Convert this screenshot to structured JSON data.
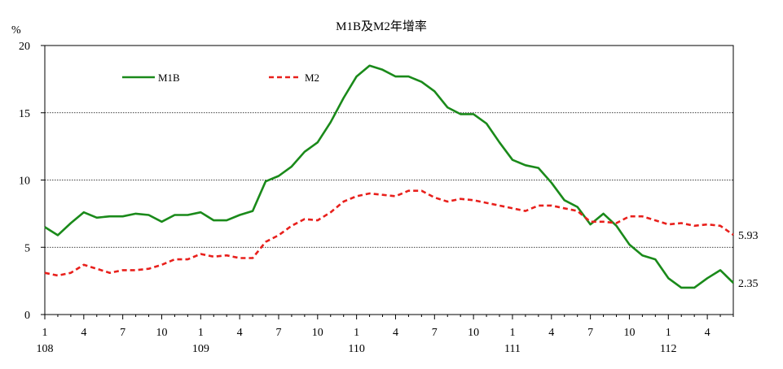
{
  "chart_data": {
    "type": "line",
    "title": "M1B及M2年增率",
    "ylabel": "%",
    "ylim": [
      0,
      20
    ],
    "yticks": [
      "0",
      "5",
      "10",
      "15",
      "20"
    ],
    "grid": true,
    "legend_position": "top-left",
    "colors": {
      "M1B": "#1a8a1a",
      "M2": "#e8201c"
    },
    "x_month_labels": [
      "1",
      "4",
      "7",
      "10",
      "1",
      "4",
      "7",
      "10",
      "1",
      "4",
      "7",
      "10",
      "1",
      "4",
      "7",
      "10",
      "1",
      "4",
      "7",
      "10",
      "1",
      "4"
    ],
    "x_year_labels": [
      "108",
      "109",
      "110",
      "111",
      "112"
    ],
    "series": [
      {
        "name": "M1B",
        "end_label": "2.35",
        "values": [
          6.5,
          5.9,
          6.8,
          7.6,
          7.2,
          7.3,
          7.3,
          7.5,
          7.4,
          6.9,
          7.4,
          7.4,
          7.6,
          7.0,
          7.0,
          7.4,
          7.7,
          9.9,
          10.3,
          11.0,
          12.1,
          12.8,
          14.3,
          16.1,
          17.7,
          18.5,
          18.2,
          17.7,
          17.7,
          17.3,
          16.6,
          15.4,
          14.9,
          14.9,
          14.2,
          12.8,
          11.5,
          11.1,
          10.9,
          9.8,
          8.5,
          8.0,
          6.7,
          7.5,
          6.6,
          5.2,
          4.4,
          4.1,
          2.7,
          2.0,
          2.0,
          2.7,
          3.3,
          2.35
        ]
      },
      {
        "name": "M2",
        "end_label": "5.93",
        "values": [
          3.1,
          2.9,
          3.1,
          3.7,
          3.4,
          3.1,
          3.3,
          3.3,
          3.4,
          3.7,
          4.1,
          4.1,
          4.5,
          4.3,
          4.4,
          4.2,
          4.2,
          5.4,
          5.9,
          6.6,
          7.1,
          7.0,
          7.6,
          8.4,
          8.8,
          9.0,
          8.9,
          8.8,
          9.2,
          9.2,
          8.7,
          8.4,
          8.6,
          8.5,
          8.3,
          8.1,
          7.9,
          7.7,
          8.1,
          8.1,
          7.9,
          7.7,
          6.9,
          6.9,
          6.8,
          7.3,
          7.3,
          7.0,
          6.7,
          6.8,
          6.6,
          6.7,
          6.6,
          5.93
        ]
      }
    ]
  }
}
